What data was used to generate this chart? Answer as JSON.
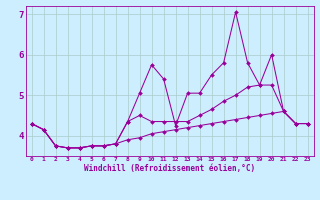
{
  "xlabel": "Windchill (Refroidissement éolien,°C)",
  "ylabel": "",
  "bg_color": "#cceeff",
  "line_color": "#990099",
  "grid_color": "#aacccc",
  "xlim": [
    -0.5,
    23.5
  ],
  "ylim": [
    3.5,
    7.2
  ],
  "xticks": [
    0,
    1,
    2,
    3,
    4,
    5,
    6,
    7,
    8,
    9,
    10,
    11,
    12,
    13,
    14,
    15,
    16,
    17,
    18,
    19,
    20,
    21,
    22,
    23
  ],
  "yticks": [
    4,
    5,
    6,
    7
  ],
  "series": {
    "top": [
      4.3,
      4.15,
      3.75,
      3.7,
      3.7,
      3.75,
      3.75,
      3.8,
      4.35,
      5.05,
      5.75,
      5.4,
      4.25,
      5.05,
      5.05,
      5.5,
      5.8,
      7.05,
      5.8,
      5.25,
      6.0,
      4.6,
      4.3,
      4.3
    ],
    "mid": [
      4.3,
      4.15,
      3.75,
      3.7,
      3.7,
      3.75,
      3.75,
      3.8,
      4.35,
      4.5,
      4.35,
      4.35,
      4.35,
      4.35,
      4.5,
      4.65,
      4.85,
      5.0,
      5.2,
      5.25,
      5.25,
      4.6,
      4.3,
      4.3
    ],
    "bot": [
      4.3,
      4.15,
      3.75,
      3.7,
      3.7,
      3.75,
      3.75,
      3.8,
      3.9,
      3.95,
      4.05,
      4.1,
      4.15,
      4.2,
      4.25,
      4.3,
      4.35,
      4.4,
      4.45,
      4.5,
      4.55,
      4.6,
      4.3,
      4.3
    ]
  }
}
